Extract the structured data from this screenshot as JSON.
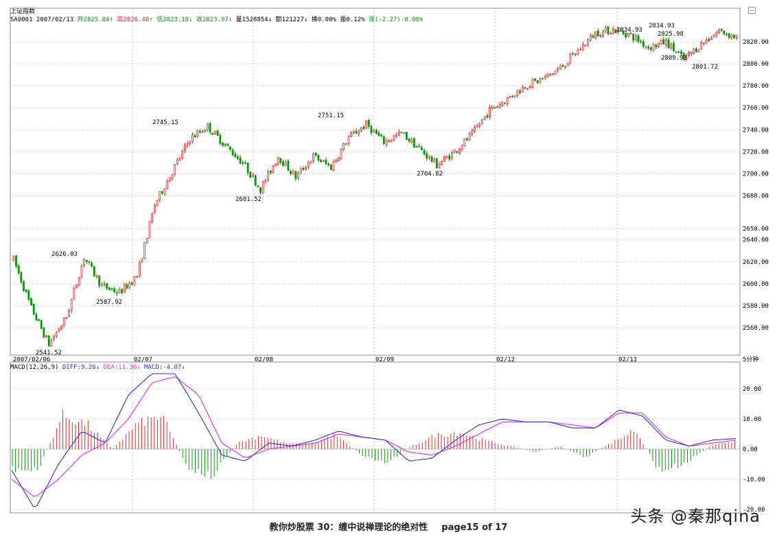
{
  "window": {
    "index_name": "上证指数"
  },
  "header": {
    "code_date": "SA0001 2007/02/13",
    "open": "开2825.84↑",
    "high": "高2826.48↑",
    "low": "低2823.18↓",
    "close": "收2823.97↓",
    "volume": "量1528854↓",
    "amount": "额121227↓",
    "turnover": "换0.00%",
    "amplitude": "振0.12%",
    "change": "涨(-2.27)-0.08%"
  },
  "macd_header": {
    "name": "MACD(12,26,9)",
    "diff": "DIFF:9.26↓",
    "dea": "DEA:11.30↓",
    "macd": "MACD:-4.07↓"
  },
  "period_label": "5分钟",
  "colors": {
    "up": "#ee2222",
    "down": "#009900",
    "diff": "#2233cc",
    "dea": "#ee22ee",
    "grid": "#b8b8b8"
  },
  "chart_data": [
    {
      "type": "candlestick",
      "title": "上证指数 5分钟",
      "ylim": [
        2540,
        2830
      ],
      "y_ticks": [
        2560,
        2580,
        2600,
        2620,
        2640,
        2650,
        2680,
        2700,
        2720,
        2740,
        2760,
        2780,
        2800,
        2820
      ],
      "y_tick_labels": [
        "2560.00",
        "2580.00",
        "2600.00",
        "2620.00",
        "2640.00",
        "2650.00",
        "2680.00",
        "2700.00",
        "2720.00",
        "2740.00",
        "2760.00",
        "2780.00",
        "2800.00",
        "2820.00"
      ],
      "date_labels": [
        "2007/02/06",
        "02/07",
        "02/08",
        "02/09",
        "02/12",
        "02/13"
      ],
      "anchors": [
        2622,
        2578,
        2545,
        2570,
        2624,
        2598,
        2592,
        2607,
        2672,
        2702,
        2732,
        2743,
        2726,
        2710,
        2686,
        2716,
        2697,
        2716,
        2706,
        2733,
        2745,
        2729,
        2737,
        2723,
        2708,
        2720,
        2736,
        2758,
        2768,
        2780,
        2786,
        2796,
        2812,
        2828,
        2831,
        2826,
        2815,
        2820,
        2804,
        2818,
        2830,
        2823.97
      ],
      "annotations": [
        {
          "text": "2541.52",
          "value": 2541.52
        },
        {
          "text": "2626.03",
          "value": 2626.03
        },
        {
          "text": "2587.92",
          "value": 2587.92
        },
        {
          "text": "2745.15",
          "value": 2745.15
        },
        {
          "text": "2681.52",
          "value": 2681.52
        },
        {
          "text": "2751.15",
          "value": 2751.15
        },
        {
          "text": "2704.82",
          "value": 2704.82
        },
        {
          "text": "2834.93",
          "value": 2834.93
        },
        {
          "text": "2825.98",
          "value": 2825.98
        },
        {
          "text": "2809.93",
          "value": 2809.93
        },
        {
          "text": "2801.72",
          "value": 2801.72
        }
      ]
    },
    {
      "type": "line",
      "title": "MACD(12,26,9)",
      "ylim": [
        -20,
        25
      ],
      "y_ticks": [
        20,
        10,
        0,
        -10,
        -20
      ],
      "y_tick_labels": [
        "20.00",
        "10.00",
        "0.00",
        "-10.00",
        "-20.00"
      ],
      "diff_anchors": [
        -7,
        -20,
        -5,
        6,
        2,
        18,
        25,
        25,
        12,
        -2,
        -4,
        2,
        1,
        3,
        6,
        4,
        3,
        -4,
        -3,
        3,
        8,
        10,
        9,
        9,
        7,
        7,
        13,
        11,
        3,
        1,
        3,
        3.5
      ],
      "dea_anchors": [
        -10,
        -16,
        -10,
        -2,
        2,
        10,
        22,
        24,
        18,
        2,
        -3,
        0,
        1,
        2,
        5,
        4,
        3,
        -1,
        -2,
        1,
        5,
        9,
        9,
        9,
        8,
        7,
        12,
        12,
        4,
        1,
        2,
        3
      ],
      "histogram_anchors": [
        -7,
        -8,
        12,
        9,
        0,
        9,
        12,
        -6,
        -10,
        2,
        5,
        2,
        2,
        5,
        -2,
        -5,
        1,
        5,
        6,
        3,
        1,
        -1,
        1,
        -3,
        2,
        7,
        -8,
        -5,
        1,
        3
      ]
    }
  ]
}
